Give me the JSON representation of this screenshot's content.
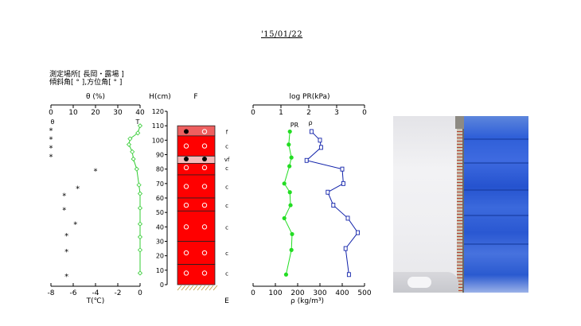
{
  "date": "'15/01/22",
  "meta": {
    "line1": "測定場所[ 長岡・露場 ]",
    "line2": "傾斜角[ ° ],方位角[ ° ]"
  },
  "labels": {
    "theta_axis": "θ (%)",
    "t_axis": "T(℃)",
    "h_axis": "H(cm)",
    "f_label": "F",
    "e_label": "E",
    "theta_marker": "θ",
    "t_marker": "T",
    "pr_axis": "log PR(kPa)",
    "rho_axis": "ρ (kg/m³)",
    "pr_series": "PR",
    "rho_series": "ρ"
  },
  "chart_data": [
    {
      "type": "scatter",
      "name": "water-content-temperature",
      "x_top_label": "θ (%)",
      "x_top_ticks": [
        "0",
        "10",
        "20",
        "30",
        "40"
      ],
      "x_top_range": [
        0,
        40
      ],
      "x_bottom_label": "T(℃)",
      "x_bottom_ticks": [
        "-8",
        "-6",
        "-4",
        "-2",
        "0"
      ],
      "x_bottom_range": [
        -8,
        0
      ],
      "theta_points": [
        {
          "h": 107,
          "v": 0
        },
        {
          "h": 101,
          "v": 0
        },
        {
          "h": 95,
          "v": 0
        },
        {
          "h": 89,
          "v": 0
        },
        {
          "h": 79,
          "v": 20
        },
        {
          "h": 67,
          "v": 12
        },
        {
          "h": 62,
          "v": 6
        },
        {
          "h": 52,
          "v": 6
        },
        {
          "h": 42,
          "v": 11
        },
        {
          "h": 34,
          "v": 7
        },
        {
          "h": 23,
          "v": 7
        },
        {
          "h": 6,
          "v": 7
        }
      ],
      "temperature": {
        "h": [
          110,
          105,
          101,
          97,
          92,
          87,
          80,
          69,
          63,
          53,
          42,
          33,
          24,
          8
        ],
        "t": [
          0,
          -0.2,
          -0.9,
          -1.0,
          -0.7,
          -0.6,
          -0.3,
          -0.1,
          0,
          0,
          0,
          0,
          0,
          0
        ]
      }
    },
    {
      "type": "table",
      "name": "snow-stratigraphy",
      "h_label": "H(cm)",
      "h_range": [
        0,
        120
      ],
      "h_ticks": [
        0,
        10,
        20,
        30,
        40,
        50,
        60,
        70,
        80,
        90,
        100,
        110,
        120
      ],
      "layers": [
        {
          "top": 110,
          "bottom": 103,
          "fill": "#ee5f5f"
        },
        {
          "top": 103,
          "bottom": 89,
          "fill": "#ff0000"
        },
        {
          "top": 89,
          "bottom": 84,
          "fill": "#f6b8b8"
        },
        {
          "top": 84,
          "bottom": 76,
          "fill": "#ff0000"
        },
        {
          "top": 76,
          "bottom": 60,
          "fill": "#ff0000"
        },
        {
          "top": 60,
          "bottom": 51,
          "fill": "#ff0000"
        },
        {
          "top": 51,
          "bottom": 30,
          "fill": "#ff0000"
        },
        {
          "top": 30,
          "bottom": 14,
          "fill": "#ff0000"
        },
        {
          "top": 14,
          "bottom": 0,
          "fill": "#ff0000"
        }
      ],
      "symbols": [
        {
          "h": 106,
          "left": "filled",
          "right": "open",
          "grain": "f"
        },
        {
          "h": 96,
          "left": "open",
          "right": "open",
          "grain": "c"
        },
        {
          "h": 87,
          "left": "filled",
          "right": "filled",
          "grain": "vf"
        },
        {
          "h": 81,
          "left": "open",
          "right": "open",
          "grain": "c"
        },
        {
          "h": 68,
          "left": "open",
          "right": "open",
          "grain": "c"
        },
        {
          "h": 55,
          "left": "open",
          "right": "open",
          "grain": "c"
        },
        {
          "h": 40,
          "left": "open",
          "right": "open",
          "grain": "c"
        },
        {
          "h": 22,
          "left": "open",
          "right": "open",
          "grain": "c"
        },
        {
          "h": 8,
          "left": "open",
          "right": "open",
          "grain": "c"
        }
      ]
    },
    {
      "type": "line",
      "name": "hardness-density",
      "x_top_label": "log PR(kPa)",
      "x_top_ticks": [
        "0",
        "1",
        "2",
        "3",
        "0"
      ],
      "x_bottom_label": "ρ (kg/m³)",
      "x_bottom_ticks": [
        "0",
        "100",
        "200",
        "300",
        "400",
        "500"
      ],
      "x_bottom_range": [
        0,
        500
      ],
      "series": [
        {
          "name": "PR",
          "color": "#22dd22",
          "h": [
            106,
            97,
            88,
            82,
            70,
            64,
            55,
            46,
            35,
            24,
            7
          ],
          "x": [
            165,
            160,
            172,
            163,
            140,
            165,
            168,
            140,
            175,
            172,
            148
          ]
        },
        {
          "name": "ρ",
          "color": "#1122aa",
          "h": [
            106,
            100,
            95,
            86,
            80,
            70,
            64,
            55,
            46,
            36,
            25,
            7
          ],
          "x": [
            262,
            300,
            305,
            240,
            400,
            405,
            335,
            360,
            425,
            470,
            415,
            430
          ]
        }
      ]
    }
  ]
}
